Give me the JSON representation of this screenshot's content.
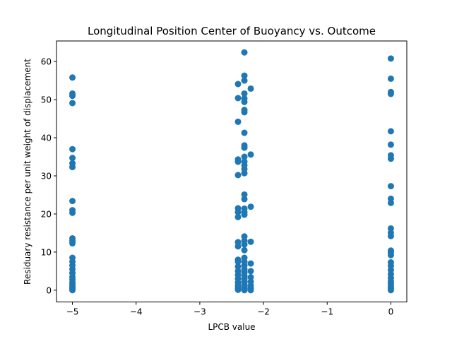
{
  "chart_data": {
    "type": "scatter",
    "title": "Longitudinal Position Center of Buoyancy vs. Outcome",
    "xlabel": "LPCB value",
    "ylabel": "Residuary resistance per unit weight of displacement",
    "xlim": [
      -5.25,
      0.25
    ],
    "ylim": [
      -3.1,
      65.4
    ],
    "xticks": [
      -5,
      -4,
      -3,
      -2,
      -1,
      0
    ],
    "xtick_labels": [
      "−5",
      "−4",
      "−3",
      "−2",
      "−1",
      "0"
    ],
    "yticks": [
      0,
      10,
      20,
      30,
      40,
      50,
      60
    ],
    "ytick_labels": [
      "0",
      "10",
      "20",
      "30",
      "40",
      "50",
      "60"
    ],
    "grid": false,
    "marker_color": "#1f77b4",
    "series": [
      {
        "points": [
          [
            -5.0,
            0.0
          ],
          [
            -5.0,
            0.3
          ],
          [
            -5.0,
            0.6
          ],
          [
            -5.0,
            1.0
          ],
          [
            -5.0,
            1.5
          ],
          [
            -5.0,
            2.0
          ],
          [
            -5.0,
            2.8
          ],
          [
            -5.0,
            3.5
          ],
          [
            -5.0,
            4.5
          ],
          [
            -5.0,
            5.5
          ],
          [
            -5.0,
            6.5
          ],
          [
            -5.0,
            7.5
          ],
          [
            -5.0,
            8.5
          ],
          [
            -5.0,
            12.3
          ],
          [
            -5.0,
            13.0
          ],
          [
            -5.0,
            13.6
          ],
          [
            -5.0,
            20.3
          ],
          [
            -5.0,
            21.0
          ],
          [
            -5.0,
            23.4
          ],
          [
            -5.0,
            32.3
          ],
          [
            -5.0,
            33.3
          ],
          [
            -5.0,
            34.7
          ],
          [
            -5.0,
            37.0
          ],
          [
            -5.0,
            49.1
          ],
          [
            -5.0,
            51.0
          ],
          [
            -5.0,
            51.6
          ],
          [
            -5.0,
            55.8
          ],
          [
            -2.4,
            0.1
          ],
          [
            -2.4,
            0.6
          ],
          [
            -2.4,
            1.2
          ],
          [
            -2.4,
            2.0
          ],
          [
            -2.4,
            3.0
          ],
          [
            -2.4,
            4.0
          ],
          [
            -2.4,
            5.0
          ],
          [
            -2.4,
            6.2
          ],
          [
            -2.4,
            7.5
          ],
          [
            -2.4,
            8.0
          ],
          [
            -2.4,
            11.5
          ],
          [
            -2.4,
            12.6
          ],
          [
            -2.4,
            19.2
          ],
          [
            -2.4,
            20.5
          ],
          [
            -2.4,
            21.5
          ],
          [
            -2.4,
            30.2
          ],
          [
            -2.4,
            33.7
          ],
          [
            -2.4,
            34.3
          ],
          [
            -2.4,
            44.2
          ],
          [
            -2.4,
            50.4
          ],
          [
            -2.4,
            54.1
          ],
          [
            -2.3,
            0.0
          ],
          [
            -2.3,
            0.4
          ],
          [
            -2.3,
            0.9
          ],
          [
            -2.3,
            1.5
          ],
          [
            -2.3,
            2.2
          ],
          [
            -2.3,
            3.0
          ],
          [
            -2.3,
            3.8
          ],
          [
            -2.3,
            4.6
          ],
          [
            -2.3,
            5.5
          ],
          [
            -2.3,
            6.5
          ],
          [
            -2.3,
            7.5
          ],
          [
            -2.3,
            8.5
          ],
          [
            -2.3,
            10.5
          ],
          [
            -2.3,
            12.0
          ],
          [
            -2.3,
            13.0
          ],
          [
            -2.3,
            14.1
          ],
          [
            -2.3,
            19.8
          ],
          [
            -2.3,
            20.5
          ],
          [
            -2.3,
            21.4
          ],
          [
            -2.3,
            23.9
          ],
          [
            -2.3,
            25.1
          ],
          [
            -2.3,
            30.7
          ],
          [
            -2.3,
            31.8
          ],
          [
            -2.3,
            32.8
          ],
          [
            -2.3,
            33.7
          ],
          [
            -2.3,
            35.0
          ],
          [
            -2.3,
            37.4
          ],
          [
            -2.3,
            38.0
          ],
          [
            -2.3,
            41.3
          ],
          [
            -2.3,
            46.7
          ],
          [
            -2.3,
            47.3
          ],
          [
            -2.3,
            49.4
          ],
          [
            -2.3,
            50.3
          ],
          [
            -2.3,
            51.6
          ],
          [
            -2.3,
            55.0
          ],
          [
            -2.3,
            56.3
          ],
          [
            -2.3,
            62.4
          ],
          [
            -2.2,
            0.0
          ],
          [
            -2.2,
            0.5
          ],
          [
            -2.2,
            1.2
          ],
          [
            -2.2,
            2.2
          ],
          [
            -2.2,
            3.4
          ],
          [
            -2.2,
            5.0
          ],
          [
            -2.2,
            7.0
          ],
          [
            -2.2,
            12.7
          ],
          [
            -2.2,
            21.9
          ],
          [
            -2.2,
            35.6
          ],
          [
            -2.2,
            52.9
          ],
          [
            0.0,
            0.0
          ],
          [
            0.0,
            0.4
          ],
          [
            0.0,
            0.9
          ],
          [
            0.0,
            1.6
          ],
          [
            0.0,
            2.3
          ],
          [
            0.0,
            3.2
          ],
          [
            0.0,
            4.2
          ],
          [
            0.0,
            5.3
          ],
          [
            0.0,
            6.4
          ],
          [
            0.0,
            7.3
          ],
          [
            0.0,
            9.2
          ],
          [
            0.0,
            9.9
          ],
          [
            0.0,
            10.4
          ],
          [
            0.0,
            14.2
          ],
          [
            0.0,
            15.1
          ],
          [
            0.0,
            16.2
          ],
          [
            0.0,
            22.9
          ],
          [
            0.0,
            24.0
          ],
          [
            0.0,
            27.3
          ],
          [
            0.0,
            34.5
          ],
          [
            0.0,
            35.4
          ],
          [
            0.0,
            38.2
          ],
          [
            0.0,
            41.7
          ],
          [
            0.0,
            51.5
          ],
          [
            0.0,
            52.0
          ],
          [
            0.0,
            55.5
          ],
          [
            0.0,
            60.8
          ]
        ]
      }
    ]
  }
}
